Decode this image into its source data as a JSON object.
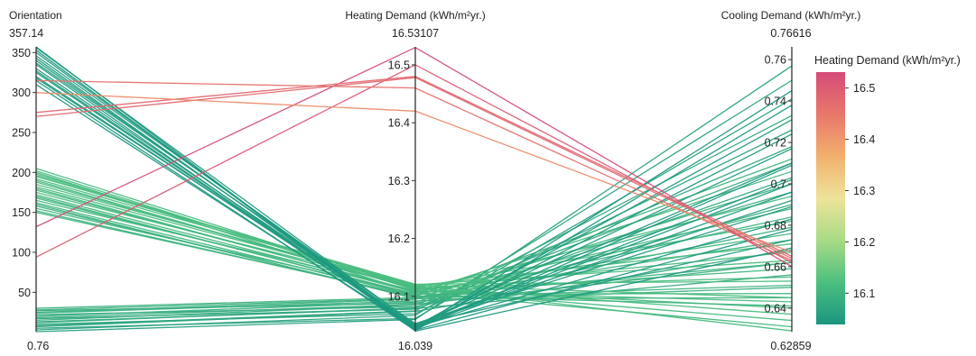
{
  "chart_data": {
    "type": "parallel_coordinates",
    "dimensions": [
      {
        "name": "Orientation",
        "range": [
          0.76,
          357.14
        ],
        "tickvals": [
          50,
          100,
          150,
          200,
          250,
          300,
          350
        ],
        "ticklabels": [
          "50",
          "100",
          "150",
          "200",
          "250",
          "300",
          "350"
        ],
        "min_label": "0.76",
        "max_label": "357.14"
      },
      {
        "name": "Heating Demand (kWh/m²yr.)",
        "range": [
          16.039,
          16.53107
        ],
        "tickvals": [
          16.1,
          16.2,
          16.3,
          16.4,
          16.5
        ],
        "ticklabels": [
          "16.1",
          "16.2",
          "16.3",
          "16.4",
          "16.5"
        ],
        "min_label": "16.039",
        "max_label": "16.53107"
      },
      {
        "name": "Cooling Demand (kWh/m²yr.)",
        "range": [
          0.62859,
          0.76616
        ],
        "tickvals": [
          0.64,
          0.66,
          0.68,
          0.7,
          0.72,
          0.74,
          0.76
        ],
        "ticklabels": [
          "0.64",
          "0.66",
          "0.68",
          "0.7",
          "0.72",
          "0.74",
          "0.76"
        ],
        "min_label": "0.62859",
        "max_label": "0.76616"
      }
    ],
    "color_by": "Heating Demand (kWh/m²yr.)",
    "colorbar": {
      "title": "Heating Demand (kWh/m²yr.)",
      "range": [
        16.039,
        16.53107
      ],
      "tickvals": [
        16.1,
        16.2,
        16.3,
        16.4,
        16.5
      ],
      "ticklabels": [
        "16.1",
        "16.2",
        "16.3",
        "16.4",
        "16.5"
      ],
      "colors": [
        "#1a9680",
        "#4cbf7f",
        "#a9db86",
        "#eee39a",
        "#f2b06e",
        "#e8776a",
        "#d44c7a"
      ]
    },
    "lines": [
      [
        0.76,
        16.06,
        0.757
      ],
      [
        3,
        16.067,
        0.75
      ],
      [
        5,
        16.062,
        0.741
      ],
      [
        8,
        16.075,
        0.733
      ],
      [
        10,
        16.07,
        0.726
      ],
      [
        12,
        16.08,
        0.718
      ],
      [
        15,
        16.085,
        0.71
      ],
      [
        17,
        16.078,
        0.703
      ],
      [
        20,
        16.09,
        0.696
      ],
      [
        22,
        16.082,
        0.69
      ],
      [
        25,
        16.095,
        0.684
      ],
      [
        27,
        16.088,
        0.679
      ],
      [
        30,
        16.098,
        0.673
      ],
      [
        7,
        16.074,
        0.668
      ],
      [
        18,
        16.086,
        0.662
      ],
      [
        13,
        16.079,
        0.656
      ],
      [
        24,
        16.092,
        0.65
      ],
      [
        28,
        16.096,
        0.645
      ],
      [
        150,
        16.1,
        0.712
      ],
      [
        155,
        16.105,
        0.706
      ],
      [
        160,
        16.096,
        0.7
      ],
      [
        165,
        16.11,
        0.694
      ],
      [
        170,
        16.102,
        0.688
      ],
      [
        175,
        16.115,
        0.682
      ],
      [
        180,
        16.108,
        0.676
      ],
      [
        185,
        16.118,
        0.671
      ],
      [
        190,
        16.112,
        0.667
      ],
      [
        195,
        16.12,
        0.663
      ],
      [
        200,
        16.106,
        0.659
      ],
      [
        205,
        16.114,
        0.655
      ],
      [
        158,
        16.098,
        0.651
      ],
      [
        168,
        16.104,
        0.647
      ],
      [
        178,
        16.109,
        0.643
      ],
      [
        188,
        16.113,
        0.64
      ],
      [
        198,
        16.117,
        0.637
      ],
      [
        202,
        16.111,
        0.634
      ],
      [
        172,
        16.107,
        0.631
      ],
      [
        182,
        16.116,
        0.629
      ],
      [
        192,
        16.119,
        0.645
      ],
      [
        162,
        16.101,
        0.641
      ],
      [
        152,
        16.099,
        0.662
      ],
      [
        196,
        16.121,
        0.653
      ],
      [
        310,
        16.044,
        0.745
      ],
      [
        315,
        16.041,
        0.738
      ],
      [
        320,
        16.048,
        0.731
      ],
      [
        325,
        16.046,
        0.724
      ],
      [
        330,
        16.05,
        0.717
      ],
      [
        335,
        16.043,
        0.709
      ],
      [
        340,
        16.049,
        0.702
      ],
      [
        343,
        16.045,
        0.696
      ],
      [
        346,
        16.052,
        0.689
      ],
      [
        350,
        16.047,
        0.683
      ],
      [
        353,
        16.042,
        0.678
      ],
      [
        356,
        16.051,
        0.673
      ],
      [
        357.14,
        16.04,
        0.669
      ],
      [
        337,
        16.053,
        0.692
      ],
      [
        327,
        16.047,
        0.7
      ],
      [
        318,
        16.05,
        0.71
      ],
      [
        94,
        16.5,
        0.662
      ],
      [
        132,
        16.53,
        0.66
      ],
      [
        270,
        16.478,
        0.664
      ],
      [
        275,
        16.48,
        0.665
      ],
      [
        315,
        16.46,
        0.663
      ],
      [
        300,
        16.42,
        0.667
      ]
    ]
  }
}
